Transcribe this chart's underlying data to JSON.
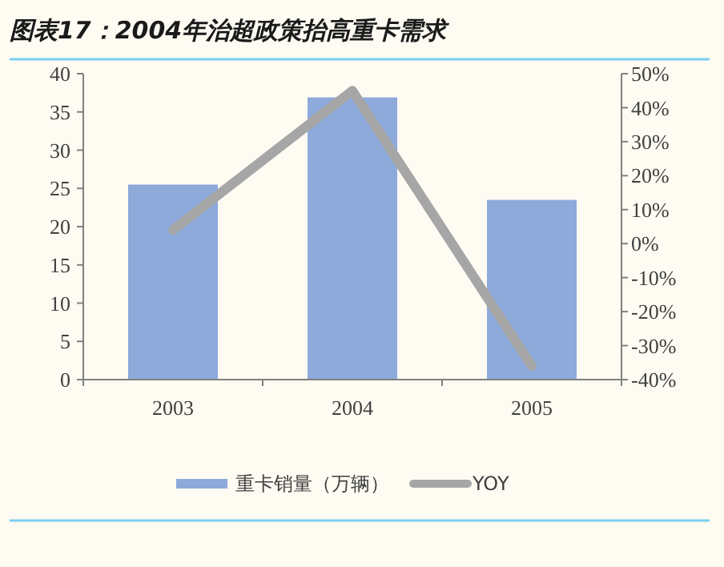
{
  "chart_data": {
    "type": "bar",
    "title": "图表17：2004年治超政策抬高重卡需求",
    "categories": [
      "2003",
      "2004",
      "2005"
    ],
    "series": [
      {
        "name": "重卡销量（万辆）",
        "color": "#8eaadb",
        "values": [
          25.5,
          36.9,
          23.5
        ]
      },
      {
        "name": "YOY",
        "type": "line",
        "axis": "y2",
        "color": "#a6a6a6",
        "values": [
          4,
          45,
          -36
        ]
      }
    ],
    "ylim": [
      0,
      40
    ],
    "yticks": [
      0,
      5,
      10,
      15,
      20,
      25,
      30,
      35,
      40
    ],
    "y2lim": [
      -40,
      50
    ],
    "y2ticks": [
      {
        "value": -40,
        "label": "-40%"
      },
      {
        "value": -30,
        "label": "-30%"
      },
      {
        "value": -20,
        "label": "-20%"
      },
      {
        "value": -10,
        "label": "-10%"
      },
      {
        "value": 0,
        "label": "0%"
      },
      {
        "value": 10,
        "label": "10%"
      },
      {
        "value": 20,
        "label": "20%"
      },
      {
        "value": 30,
        "label": "30%"
      },
      {
        "value": 40,
        "label": "40%"
      },
      {
        "value": 50,
        "label": "50%"
      }
    ],
    "legend": "bottom",
    "grid": false
  }
}
